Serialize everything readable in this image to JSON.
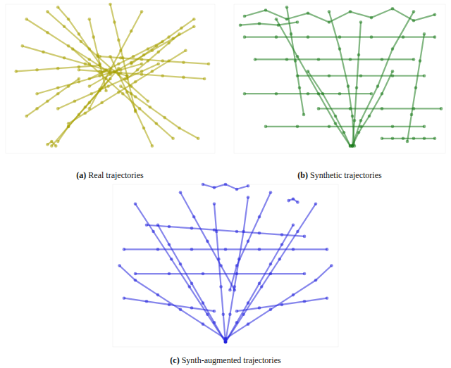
{
  "chart_data": [
    {
      "type": "line",
      "title": "(a) Real trajectories",
      "color": "#a8a000",
      "marker": "circle",
      "tick_labels": false,
      "xlim": [
        0,
        100
      ],
      "ylim": [
        0,
        100
      ],
      "series": [
        {
          "x": [
            8,
            18,
            28,
            38,
            48,
            58
          ],
          "values": [
            72,
            68,
            64,
            60,
            56,
            52
          ]
        },
        {
          "x": [
            20,
            28,
            36,
            44,
            52,
            60,
            68
          ],
          "values": [
            95,
            85,
            75,
            65,
            55,
            45,
            35
          ]
        },
        {
          "x": [
            90,
            80,
            70,
            60,
            50,
            40
          ],
          "values": [
            85,
            77,
            69,
            61,
            53,
            45
          ]
        },
        {
          "x": [
            50,
            52,
            54,
            56,
            58,
            60,
            62
          ],
          "values": [
            100,
            88,
            76,
            64,
            52,
            40,
            28
          ]
        },
        {
          "x": [
            30,
            38,
            46,
            54,
            62,
            70,
            78,
            86
          ],
          "values": [
            20,
            27,
            34,
            41,
            48,
            55,
            62,
            69
          ]
        },
        {
          "x": [
            15,
            25,
            35,
            45,
            55,
            65
          ],
          "values": [
            40,
            44,
            48,
            52,
            56,
            60
          ]
        },
        {
          "x": [
            70,
            66,
            62,
            58,
            54,
            50
          ],
          "values": [
            5,
            17,
            29,
            41,
            53,
            65
          ]
        },
        {
          "x": [
            95,
            85,
            75,
            65,
            55,
            45,
            35
          ],
          "values": [
            50,
            51,
            52,
            53,
            54,
            55,
            56
          ]
        },
        {
          "x": [
            40,
            42,
            44,
            46,
            48
          ],
          "values": [
            90,
            78,
            66,
            54,
            42
          ]
        },
        {
          "x": [
            5,
            15,
            25,
            35,
            45
          ],
          "values": [
            55,
            56,
            57,
            58,
            59
          ]
        },
        {
          "x": [
            80,
            72,
            64,
            56,
            48,
            40,
            32
          ],
          "values": [
            10,
            20,
            30,
            40,
            50,
            60,
            70
          ]
        },
        {
          "x": [
            60,
            66,
            72,
            78,
            84,
            90
          ],
          "values": [
            60,
            66,
            72,
            78,
            84,
            90
          ]
        },
        {
          "x": [
            35,
            30,
            25,
            20,
            15,
            10
          ],
          "values": [
            50,
            45,
            40,
            35,
            30,
            25
          ]
        },
        {
          "x": [
            45,
            40,
            35,
            30,
            25
          ],
          "values": [
            60,
            70,
            80,
            90,
            98
          ]
        },
        {
          "x": [
            55,
            62,
            69,
            76,
            83,
            92
          ],
          "values": [
            45,
            38,
            31,
            24,
            17,
            10
          ]
        },
        {
          "x": [
            25,
            33,
            41,
            49,
            57,
            65,
            73
          ],
          "values": [
            30,
            35,
            40,
            45,
            50,
            55,
            60
          ]
        },
        {
          "x": [
            65,
            60,
            55,
            50,
            45,
            40
          ],
          "values": [
            95,
            82,
            69,
            56,
            43,
            30
          ]
        },
        {
          "x": [
            10,
            20,
            30,
            40,
            50
          ],
          "values": [
            90,
            81,
            72,
            63,
            54
          ]
        },
        {
          "x": [
            50,
            45,
            40,
            35,
            30,
            25
          ],
          "values": [
            50,
            42,
            34,
            26,
            18,
            8
          ]
        },
        {
          "x": [
            45,
            55,
            65,
            75,
            85,
            97
          ],
          "values": [
            65,
            64,
            63,
            62,
            61,
            60
          ]
        },
        {
          "x": [
            22,
            30,
            38,
            46,
            54
          ],
          "values": [
            5,
            18,
            31,
            44,
            57
          ]
        },
        {
          "x": [
            75,
            68,
            61,
            54,
            47,
            40
          ],
          "values": [
            75,
            70,
            65,
            60,
            55,
            50
          ]
        },
        {
          "x": [
            20,
            22,
            24
          ],
          "values": [
            6,
            8,
            5
          ]
        },
        {
          "x": [
            58,
            63,
            68,
            73,
            78,
            83
          ],
          "values": [
            50,
            56,
            62,
            68,
            74,
            80
          ]
        }
      ]
    },
    {
      "type": "line",
      "title": "(b) Synthetic trajectories",
      "color": "#1a7a1a",
      "marker": "circle",
      "tick_labels": false,
      "xlim": [
        0,
        100
      ],
      "ylim": [
        0,
        100
      ],
      "series": [
        {
          "x": [
            5,
            20,
            35,
            50,
            65,
            80,
            95
          ],
          "values": [
            78,
            78,
            78,
            78,
            78,
            78,
            78
          ]
        },
        {
          "x": [
            10,
            25,
            40,
            55,
            70,
            85
          ],
          "values": [
            63,
            63,
            63,
            63,
            63,
            63
          ]
        },
        {
          "x": [
            30,
            45,
            60,
            75,
            90
          ],
          "values": [
            52,
            52,
            52,
            52,
            52
          ]
        },
        {
          "x": [
            5,
            20,
            35,
            50,
            65
          ],
          "values": [
            40,
            40,
            40,
            40,
            40
          ]
        },
        {
          "x": [
            40,
            55,
            70,
            85,
            98
          ],
          "values": [
            30,
            30,
            30,
            30,
            30
          ]
        },
        {
          "x": [
            15,
            30,
            45,
            60,
            75,
            90
          ],
          "values": [
            18,
            18,
            18,
            18,
            18,
            18
          ]
        },
        {
          "x": [
            45,
            50,
            54,
            56,
            57
          ],
          "values": [
            95,
            70,
            45,
            25,
            5
          ]
        },
        {
          "x": [
            20,
            30,
            40,
            48,
            55
          ],
          "values": [
            90,
            65,
            40,
            20,
            5
          ]
        },
        {
          "x": [
            85,
            75,
            68,
            60,
            56
          ],
          "values": [
            95,
            70,
            45,
            22,
            5
          ]
        },
        {
          "x": [
            60,
            59,
            58,
            57,
            56
          ],
          "values": [
            88,
            66,
            44,
            22,
            5
          ]
        },
        {
          "x": [
            35,
            42,
            48,
            52,
            55
          ],
          "values": [
            55,
            40,
            25,
            14,
            5
          ]
        },
        {
          "x": [
            75,
            70,
            64,
            59,
            56
          ],
          "values": [
            55,
            40,
            25,
            14,
            5
          ]
        },
        {
          "x": [
            5,
            15,
            25,
            35,
            45,
            55,
            65,
            75,
            85,
            95
          ],
          "values": [
            92,
            96,
            90,
            94,
            88,
            95,
            91,
            97,
            89,
            93
          ]
        },
        {
          "x": [
            3,
            12,
            21,
            30
          ],
          "values": [
            86,
            87,
            86,
            88
          ]
        },
        {
          "x": [
            70,
            75,
            80,
            85,
            90,
            95
          ],
          "values": [
            10,
            10,
            10,
            10,
            10,
            10
          ]
        },
        {
          "x": [
            25,
            27,
            29,
            31,
            33
          ],
          "values": [
            98,
            80,
            62,
            44,
            26
          ]
        },
        {
          "x": [
            90,
            88,
            86,
            84,
            82
          ],
          "values": [
            80,
            62,
            44,
            26,
            8
          ]
        }
      ]
    },
    {
      "type": "line",
      "title": "(c) Synth-augmented trajectories",
      "color": "#2222dd",
      "marker": "circle",
      "tick_labels": false,
      "xlim": [
        0,
        100
      ],
      "ylim": [
        0,
        100
      ],
      "series": [
        {
          "x": [
            50,
            45,
            40,
            35,
            30,
            25,
            20
          ],
          "values": [
            3,
            15,
            27,
            39,
            51,
            63,
            75
          ]
        },
        {
          "x": [
            50,
            55,
            60,
            65,
            70,
            75,
            80
          ],
          "values": [
            3,
            15,
            27,
            39,
            51,
            63,
            75
          ]
        },
        {
          "x": [
            50,
            49,
            48,
            47,
            46,
            45
          ],
          "values": [
            3,
            20,
            37,
            54,
            71,
            88
          ]
        },
        {
          "x": [
            50,
            40,
            30,
            20,
            10,
            3
          ],
          "values": [
            5,
            14,
            23,
            32,
            41,
            50
          ]
        },
        {
          "x": [
            50,
            60,
            70,
            80,
            90,
            97
          ],
          "values": [
            5,
            14,
            23,
            32,
            41,
            50
          ]
        },
        {
          "x": [
            5,
            20,
            35,
            50,
            65,
            80,
            95
          ],
          "values": [
            60,
            60,
            60,
            60,
            60,
            60,
            60
          ]
        },
        {
          "x": [
            10,
            25,
            40,
            55,
            70,
            85
          ],
          "values": [
            45,
            45,
            45,
            45,
            45,
            45
          ]
        },
        {
          "x": [
            50,
            52,
            54,
            56,
            58,
            60
          ],
          "values": [
            3,
            20,
            37,
            54,
            71,
            92
          ]
        },
        {
          "x": [
            50,
            42,
            34,
            26,
            18,
            10
          ],
          "values": [
            3,
            20,
            37,
            54,
            71,
            88
          ]
        },
        {
          "x": [
            50,
            58,
            66,
            74,
            82,
            90
          ],
          "values": [
            3,
            20,
            37,
            54,
            71,
            88
          ]
        },
        {
          "x": [
            15,
            25,
            35,
            45,
            55,
            65,
            75,
            85
          ],
          "values": [
            75,
            74,
            73,
            72,
            71,
            70,
            69,
            68
          ]
        },
        {
          "x": [
            30,
            36,
            42,
            48,
            54
          ],
          "values": [
            95,
            80,
            65,
            50,
            35
          ]
        },
        {
          "x": [
            70,
            65,
            60,
            55,
            52
          ],
          "values": [
            95,
            80,
            65,
            50,
            35
          ]
        },
        {
          "x": [
            5,
            15,
            25,
            35,
            45
          ],
          "values": [
            30,
            28,
            26,
            24,
            22
          ]
        },
        {
          "x": [
            55,
            65,
            75,
            85,
            95
          ],
          "values": [
            22,
            24,
            26,
            28,
            30
          ]
        },
        {
          "x": [
            40,
            45,
            50,
            55,
            60
          ],
          "values": [
            100,
            98,
            100,
            97,
            99
          ]
        },
        {
          "x": [
            78,
            80,
            82
          ],
          "values": [
            90,
            91,
            89
          ]
        }
      ]
    }
  ]
}
